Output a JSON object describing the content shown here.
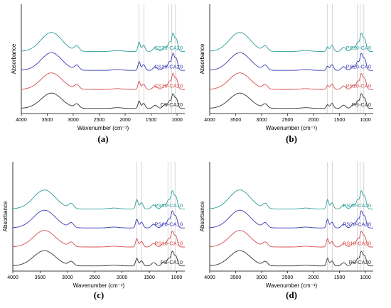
{
  "colors": {
    "teal": "#2b9e9a",
    "blue": "#3b3bb5",
    "red": "#d84c4c",
    "black": "#333333",
    "guide": "#bbbbbb"
  },
  "chart_data": [
    {
      "type": "line",
      "panel_label": "(a)",
      "xlabel": "Wavenumber (cm⁻¹)",
      "ylabel": "Absorbance",
      "xlim": [
        4000,
        850
      ],
      "x_reversed": true,
      "xticks": [
        4000,
        3500,
        3000,
        2500,
        2000,
        1500,
        1000
      ],
      "y_tick_labels": false,
      "grid": false,
      "reference_lines": [
        1730,
        1640,
        1160,
        1100,
        1030
      ],
      "series": [
        {
          "name": "CS30-CA20",
          "color": "teal",
          "offset": 3,
          "profile": "starch"
        },
        {
          "name": "CS20-CA20",
          "color": "blue",
          "offset": 2,
          "profile": "starch"
        },
        {
          "name": "CS10-CA20",
          "color": "red",
          "offset": 1,
          "profile": "starch"
        },
        {
          "name": "CS-CA20",
          "color": "black",
          "offset": 0,
          "profile": "starch"
        }
      ]
    },
    {
      "type": "line",
      "panel_label": "(b)",
      "xlabel": "Wavenumber (cm⁻¹)",
      "ylabel": "Absorbance",
      "xlim": [
        4000,
        850
      ],
      "x_reversed": true,
      "xticks": [
        4000,
        3500,
        3000,
        2500,
        2000,
        1500,
        1000
      ],
      "y_tick_labels": false,
      "grid": false,
      "reference_lines": [
        1730,
        1640,
        1160,
        1100,
        1030
      ],
      "series": [
        {
          "name": "PS30-CA0",
          "color": "teal",
          "offset": 3,
          "profile": "starch0"
        },
        {
          "name": "PS20-CA0",
          "color": "blue",
          "offset": 2,
          "profile": "starch0"
        },
        {
          "name": "PS10-CA0",
          "color": "red",
          "offset": 1,
          "profile": "starch0"
        },
        {
          "name": "PS-CA0",
          "color": "black",
          "offset": 0,
          "profile": "starch0"
        }
      ]
    },
    {
      "type": "line",
      "panel_label": "(c)",
      "xlabel": "Wavenumber (cm⁻¹)",
      "ylabel": "Absorbance",
      "xlim": [
        4000,
        850
      ],
      "x_reversed": true,
      "xticks": [
        4000,
        3500,
        3000,
        2500,
        2000,
        1500,
        1000
      ],
      "y_tick_labels": false,
      "grid": false,
      "reference_lines": [
        1730,
        1640,
        1160,
        1100,
        1030
      ],
      "series": [
        {
          "name": "PS30-CA10",
          "color": "teal",
          "offset": 3,
          "profile": "starch"
        },
        {
          "name": "PS20-CA10",
          "color": "blue",
          "offset": 2,
          "profile": "starch"
        },
        {
          "name": "PS10-CA10",
          "color": "red",
          "offset": 1,
          "profile": "starch"
        },
        {
          "name": "PS-CA10",
          "color": "black",
          "offset": 0,
          "profile": "starch"
        }
      ]
    },
    {
      "type": "line",
      "panel_label": "(d)",
      "xlabel": "Wavenumber (cm⁻¹)",
      "ylabel": "Absorbance",
      "xlim": [
        4000,
        850
      ],
      "x_reversed": true,
      "xticks": [
        4000,
        3500,
        3000,
        2500,
        2000,
        1500,
        1000
      ],
      "y_tick_labels": false,
      "grid": false,
      "reference_lines": [
        1730,
        1640,
        1160,
        1100,
        1030
      ],
      "series": [
        {
          "name": "PS30-CA20",
          "color": "teal",
          "offset": 3,
          "profile": "starch"
        },
        {
          "name": "PS20-CA20",
          "color": "blue",
          "offset": 2,
          "profile": "starch"
        },
        {
          "name": "PS10-CA20",
          "color": "red",
          "offset": 1,
          "profile": "starch"
        },
        {
          "name": "PS-CA20",
          "color": "black",
          "offset": 0,
          "profile": "starch"
        }
      ]
    }
  ]
}
